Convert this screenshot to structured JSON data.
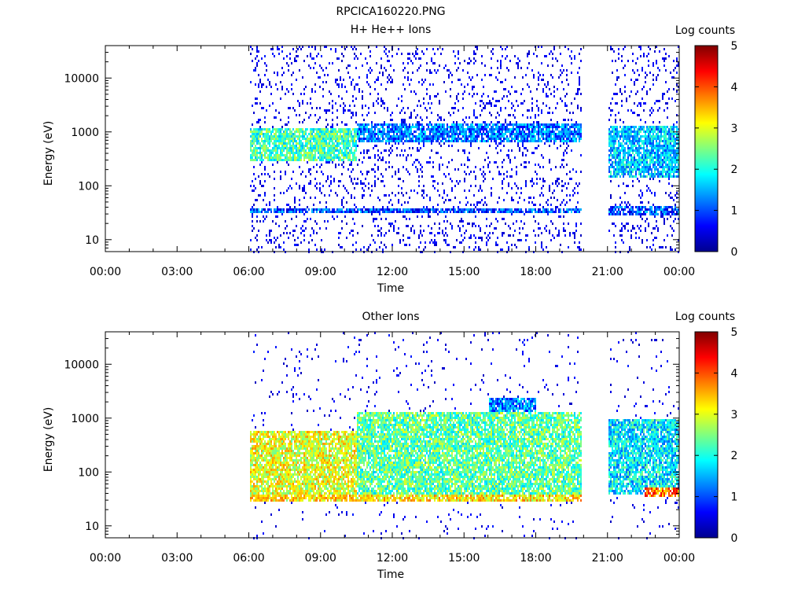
{
  "figure_title": "RPCICA160220.PNG",
  "chart_data": [
    {
      "type": "heatmap",
      "title": "H+ He++ Ions",
      "xlabel": "Time",
      "ylabel": "Energy (eV)",
      "y_scale": "log",
      "ylim": [
        6,
        40000
      ],
      "x_range_hours": [
        0,
        24
      ],
      "x_tick_labels": [
        "00:00",
        "03:00",
        "06:00",
        "09:00",
        "12:00",
        "15:00",
        "18:00",
        "21:00",
        "00:00"
      ],
      "y_tick_labels": [
        "10",
        "100",
        "1000",
        "10000"
      ],
      "colorbar": {
        "label": "Log counts",
        "range": [
          0,
          5
        ],
        "tick_labels": [
          "0",
          "1",
          "2",
          "3",
          "4",
          "5"
        ]
      },
      "data_gaps_hours": [
        [
          0,
          6.0
        ],
        [
          19.9,
          21.0
        ]
      ],
      "bands": [
        {
          "t": [
            6.0,
            10.5
          ],
          "e": [
            300,
            1200
          ],
          "level": 2.2,
          "desc": "main ion band"
        },
        {
          "t": [
            10.5,
            19.9
          ],
          "e": [
            700,
            1500
          ],
          "level": 1.2,
          "desc": "upper band"
        },
        {
          "t": [
            6.0,
            19.9
          ],
          "e": [
            32,
            40
          ],
          "level": 1.0,
          "desc": "low energy line"
        },
        {
          "t": [
            21.0,
            24.0
          ],
          "e": [
            150,
            1300
          ],
          "level": 1.6,
          "desc": "post-gap band"
        },
        {
          "t": [
            21.0,
            24.0
          ],
          "e": [
            30,
            45
          ],
          "level": 1.0,
          "desc": "post-gap low line"
        }
      ]
    },
    {
      "type": "heatmap",
      "title": "Other Ions",
      "xlabel": "Time",
      "ylabel": "Energy (eV)",
      "y_scale": "log",
      "ylim": [
        6,
        40000
      ],
      "x_range_hours": [
        0,
        24
      ],
      "x_tick_labels": [
        "00:00",
        "03:00",
        "06:00",
        "09:00",
        "12:00",
        "15:00",
        "18:00",
        "21:00",
        "00:00"
      ],
      "y_tick_labels": [
        "10",
        "100",
        "1000",
        "10000"
      ],
      "colorbar": {
        "label": "Log counts",
        "range": [
          0,
          5
        ],
        "tick_labels": [
          "0",
          "1",
          "2",
          "3",
          "4",
          "5"
        ]
      },
      "data_gaps_hours": [
        [
          0,
          6.0
        ],
        [
          19.9,
          21.0
        ]
      ],
      "bands": [
        {
          "t": [
            6.0,
            10.5
          ],
          "e": [
            30,
            600
          ],
          "level": 3.0,
          "desc": "dense low energy population"
        },
        {
          "t": [
            10.5,
            19.9
          ],
          "e": [
            30,
            1300
          ],
          "level": 2.3,
          "desc": "broad population"
        },
        {
          "t": [
            16.0,
            18.0
          ],
          "e": [
            800,
            2500
          ],
          "level": 1.3,
          "desc": "arc feature"
        },
        {
          "t": [
            6.0,
            19.9
          ],
          "e": [
            30,
            40
          ],
          "level": 3.2,
          "desc": "low energy line"
        },
        {
          "t": [
            21.0,
            24.0
          ],
          "e": [
            40,
            1000
          ],
          "level": 1.8,
          "desc": "post-gap population"
        },
        {
          "t": [
            22.5,
            24.0
          ],
          "e": [
            35,
            55
          ],
          "level": 3.8,
          "desc": "post-gap intense low band"
        }
      ]
    }
  ]
}
